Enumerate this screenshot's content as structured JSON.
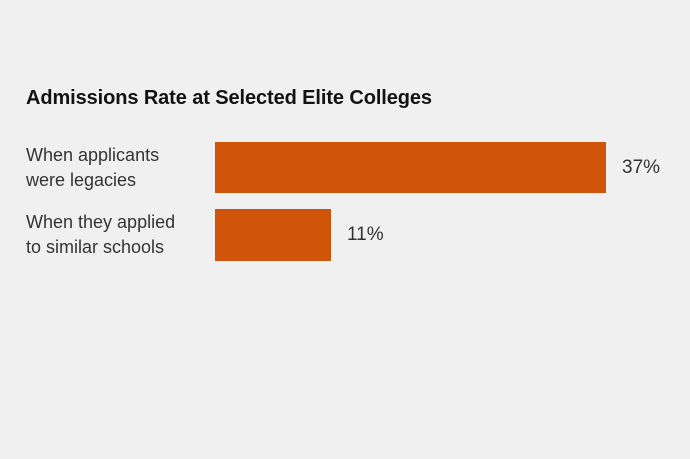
{
  "page": {
    "background_color": "#f0f0f0"
  },
  "title": "Admissions Rate at Selected Elite Colleges",
  "rows": [
    {
      "label_line1": "When applicants",
      "label_line2": "were legacies",
      "value_label": "37%"
    },
    {
      "label_line1": "When they applied",
      "label_line2": "to similar schools",
      "value_label": "11%"
    }
  ],
  "chart_data": {
    "type": "bar",
    "orientation": "horizontal",
    "title": "Admissions Rate at Selected Elite Colleges",
    "categories": [
      "When applicants were legacies",
      "When they applied to similar schools"
    ],
    "values": [
      37,
      11
    ],
    "value_labels": [
      "37%",
      "11%"
    ],
    "xlabel": "",
    "ylabel": "",
    "xlim": [
      0,
      40
    ],
    "grid": false,
    "legend": "none",
    "bar_color": "#d0550a",
    "text_color": "#333333",
    "title_color": "#121212",
    "background_color": "#f0f0f0"
  }
}
